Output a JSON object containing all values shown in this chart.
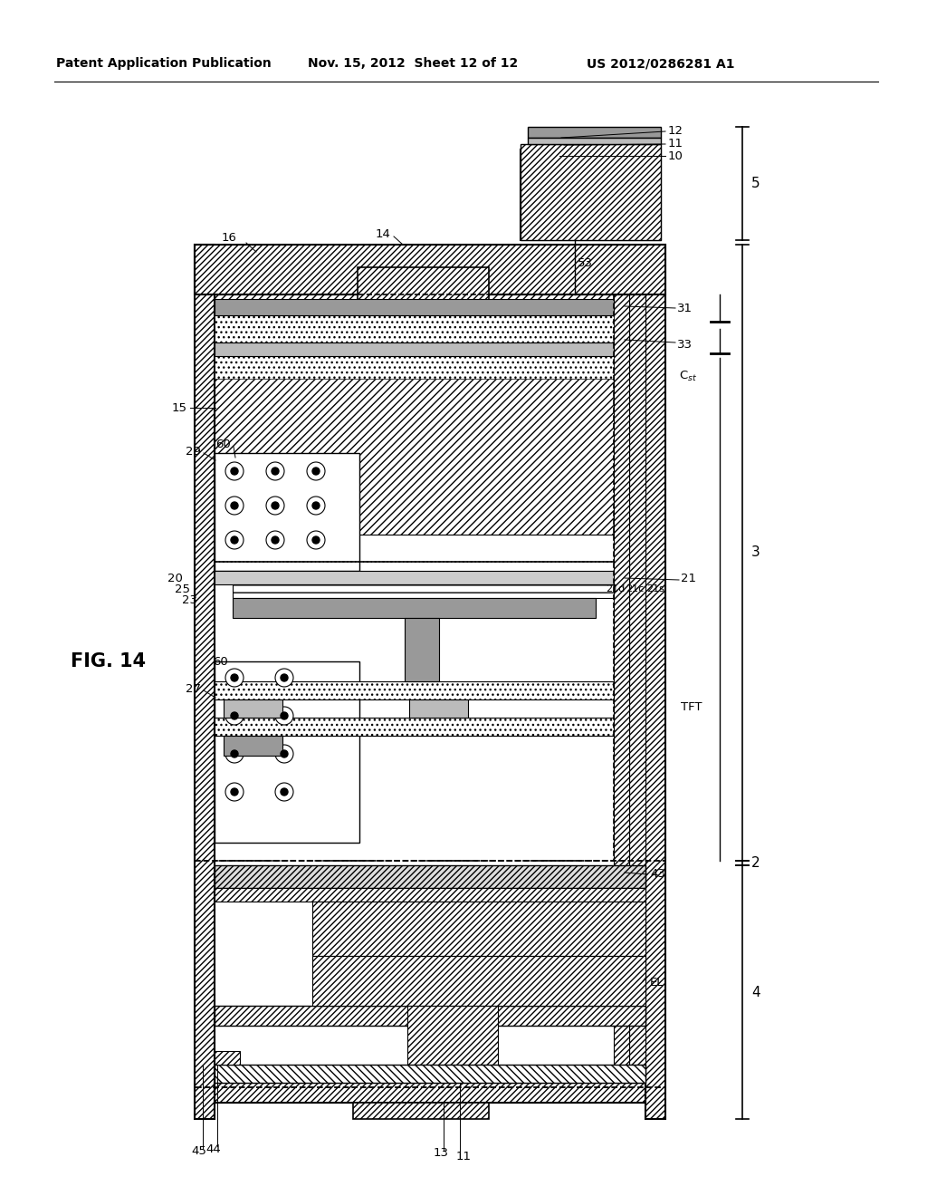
{
  "bg": "#ffffff",
  "header_left": "Patent Application Publication",
  "header_mid": "Nov. 15, 2012  Sheet 12 of 12",
  "header_right": "US 2012/0286281 A1",
  "fig_label": "FIG. 14",
  "PL": 215,
  "PR": 735,
  "PT": 270,
  "PB": 1235,
  "TK": 22,
  "hatch_dense": "/////",
  "hatch_med": "////",
  "hatch_back": "\\\\\\\\",
  "gray1": "#999999",
  "gray2": "#bbbbbb",
  "gray3": "#cccccc",
  "gray4": "#dddddd"
}
